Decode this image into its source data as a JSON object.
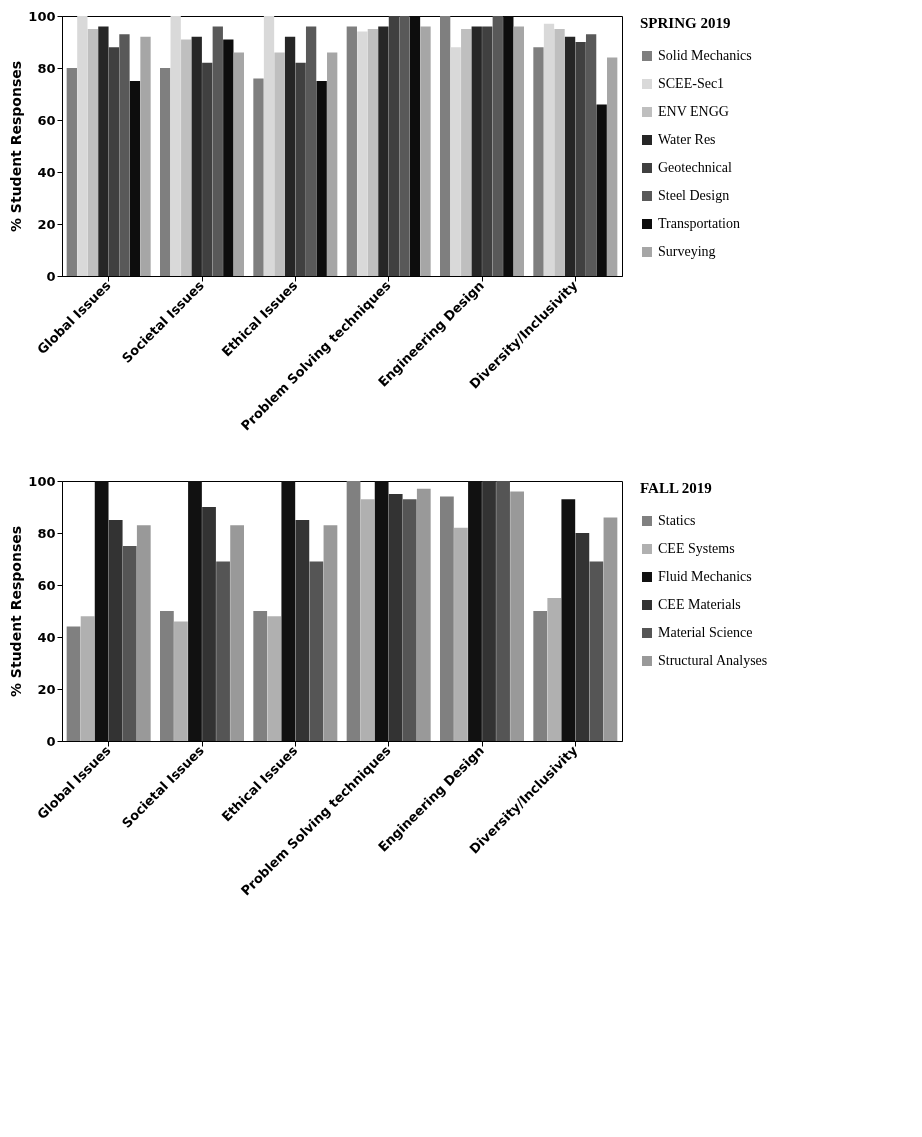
{
  "chart_data": [
    {
      "type": "bar",
      "legend_title": "SPRING 2019",
      "ylabel": "% Student Responses",
      "legend": "right",
      "categories": [
        "Global Issues",
        "Societal Issues",
        "Ethical Issues",
        "Problem Solving techniques",
        "Engineering Design",
        "Diversity/Inclusivity"
      ],
      "ylim": [
        0,
        100
      ],
      "yticks": [
        0,
        20,
        40,
        60,
        80,
        100
      ],
      "series": [
        {
          "name": "Solid Mechanics",
          "color": "#7f7f7f",
          "values": [
            80,
            80,
            76,
            96,
            100,
            88
          ]
        },
        {
          "name": "SCEE-Sec1",
          "color": "#d9d9d9",
          "values": [
            100,
            100,
            100,
            94,
            88,
            97
          ]
        },
        {
          "name": "ENV ENGG",
          "color": "#bfbfbf",
          "values": [
            95,
            91,
            86,
            95,
            95,
            95
          ]
        },
        {
          "name": "Water Res",
          "color": "#262626",
          "values": [
            96,
            92,
            92,
            96,
            96,
            92
          ]
        },
        {
          "name": "Geotechnical",
          "color": "#404040",
          "values": [
            88,
            82,
            82,
            100,
            96,
            90
          ]
        },
        {
          "name": "Steel Design",
          "color": "#595959",
          "values": [
            93,
            96,
            96,
            100,
            100,
            93
          ]
        },
        {
          "name": "Transportation",
          "color": "#0d0d0d",
          "values": [
            75,
            91,
            75,
            100,
            100,
            66
          ]
        },
        {
          "name": "Surveying",
          "color": "#a6a6a6",
          "values": [
            92,
            86,
            86,
            96,
            96,
            84
          ]
        }
      ]
    },
    {
      "type": "bar",
      "legend_title": "FALL 2019",
      "ylabel": "% Student Responses",
      "legend": "right",
      "categories": [
        "Global Issues",
        "Societal Issues",
        "Ethical Issues",
        "Problem Solving techniques",
        "Engineering Design",
        "Diversity/Inclusivity"
      ],
      "ylim": [
        0,
        100
      ],
      "yticks": [
        0,
        20,
        40,
        60,
        80,
        100
      ],
      "series": [
        {
          "name": "Statics",
          "color": "#808080",
          "values": [
            44,
            50,
            50,
            100,
            94,
            50
          ]
        },
        {
          "name": "CEE Systems",
          "color": "#b0b0b0",
          "values": [
            48,
            46,
            48,
            93,
            82,
            55
          ]
        },
        {
          "name": "Fluid Mechanics",
          "color": "#111111",
          "values": [
            100,
            100,
            100,
            100,
            100,
            93
          ]
        },
        {
          "name": "CEE Materials",
          "color": "#333333",
          "values": [
            85,
            90,
            85,
            95,
            100,
            80
          ]
        },
        {
          "name": "Material Science",
          "color": "#555555",
          "values": [
            75,
            69,
            69,
            93,
            100,
            69
          ]
        },
        {
          "name": "Structural Analyses",
          "color": "#999999",
          "values": [
            83,
            83,
            83,
            97,
            96,
            86
          ]
        }
      ]
    }
  ]
}
